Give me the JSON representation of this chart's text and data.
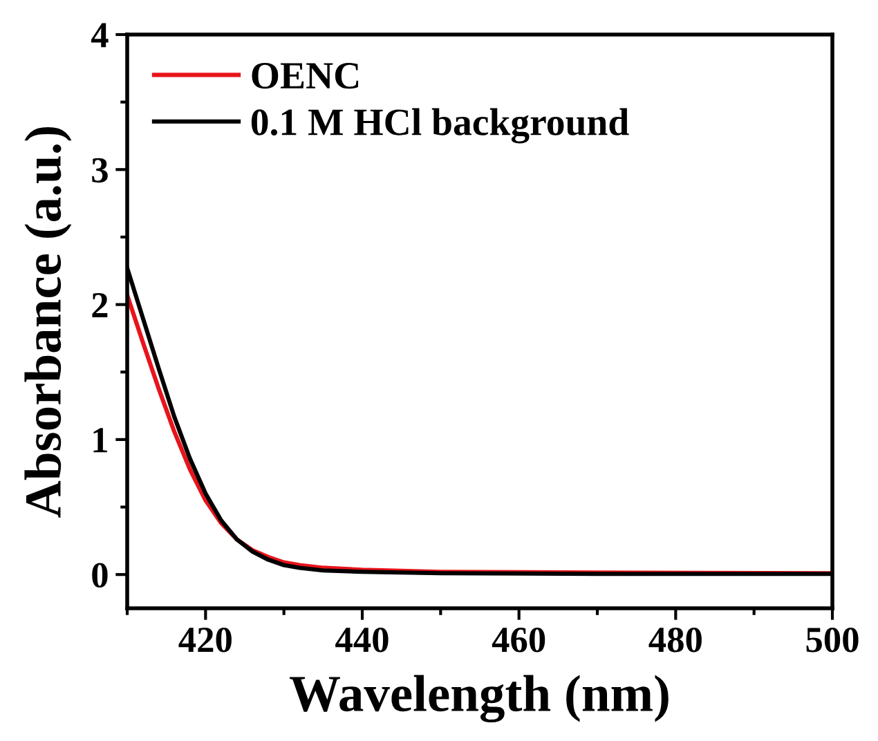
{
  "chart_data": {
    "type": "line",
    "xlabel": "Wavelength (nm)",
    "ylabel": "Absorbance (a.u.)",
    "xlim": [
      410,
      500
    ],
    "xticks": [
      420,
      440,
      460,
      480,
      500
    ],
    "ylim": [
      -0.25,
      4
    ],
    "yticks": [
      0,
      1,
      2,
      3,
      4
    ],
    "grid": false,
    "legend": "top left",
    "marker": "none",
    "line_style": "solid",
    "series": [
      {
        "name": "OENC",
        "color": "#e8141b",
        "x": [
          410,
          412,
          414,
          416,
          418,
          420,
          422,
          424,
          426,
          428,
          430,
          432,
          435,
          440,
          450,
          470,
          500
        ],
        "values": [
          2.07,
          1.72,
          1.38,
          1.06,
          0.78,
          0.55,
          0.38,
          0.26,
          0.18,
          0.13,
          0.09,
          0.07,
          0.05,
          0.035,
          0.02,
          0.015,
          0.01
        ]
      },
      {
        "name": "0.1 M HCl background",
        "color": "#000000",
        "x": [
          410,
          412,
          414,
          416,
          418,
          420,
          422,
          424,
          426,
          428,
          430,
          432,
          435,
          440,
          450,
          470,
          500
        ],
        "values": [
          2.27,
          1.9,
          1.53,
          1.17,
          0.86,
          0.6,
          0.4,
          0.26,
          0.17,
          0.11,
          0.07,
          0.05,
          0.03,
          0.02,
          0.01,
          0.005,
          0.005
        ]
      }
    ]
  }
}
